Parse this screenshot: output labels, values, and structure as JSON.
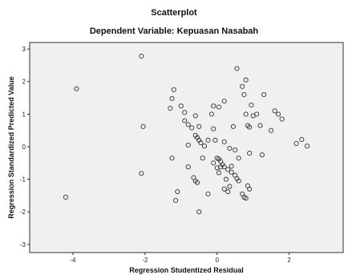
{
  "chart_data": {
    "type": "scatter",
    "title": "Scatterplot",
    "subtitle": "Dependent Variable: Kepuasan Nasabah",
    "xlabel": "Regression Studentized Residual",
    "ylabel": "Regression Standardized Predicted Value",
    "xlim": [
      -5.2,
      3.5
    ],
    "ylim": [
      -3.25,
      3.2
    ],
    "xticks": [
      -4,
      -2,
      0,
      2
    ],
    "xtick_labels": [
      "-4",
      "-2",
      "0",
      "2"
    ],
    "yticks": [
      -3,
      -2,
      -1,
      0,
      1,
      2,
      3
    ],
    "ytick_labels": [
      "-3",
      "-2",
      "-1",
      "0",
      "1",
      "2",
      "3"
    ],
    "grid": false,
    "legend": "none",
    "colors": {
      "plot_background": "#f0f0f0",
      "marker_edge": "#333333",
      "frame": "#000000"
    },
    "points": [
      {
        "x": -4.2,
        "y": -1.55
      },
      {
        "x": -3.9,
        "y": 1.78
      },
      {
        "x": -2.1,
        "y": 2.78
      },
      {
        "x": -2.05,
        "y": 0.62
      },
      {
        "x": -2.1,
        "y": -0.82
      },
      {
        "x": -1.2,
        "y": 1.75
      },
      {
        "x": -1.25,
        "y": 1.48
      },
      {
        "x": -1.3,
        "y": 1.18
      },
      {
        "x": -0.9,
        "y": 1.05
      },
      {
        "x": -0.9,
        "y": 0.8
      },
      {
        "x": -0.8,
        "y": 0.68
      },
      {
        "x": -0.7,
        "y": 0.58
      },
      {
        "x": -1.0,
        "y": 1.25
      },
      {
        "x": -0.6,
        "y": 0.95
      },
      {
        "x": -0.6,
        "y": 0.35
      },
      {
        "x": -0.55,
        "y": 0.28
      },
      {
        "x": -0.5,
        "y": 0.2
      },
      {
        "x": -0.45,
        "y": 0.12
      },
      {
        "x": -0.35,
        "y": 0.02
      },
      {
        "x": -0.8,
        "y": 0.05
      },
      {
        "x": -0.5,
        "y": 0.62
      },
      {
        "x": -0.25,
        "y": 0.2
      },
      {
        "x": -1.25,
        "y": -0.35
      },
      {
        "x": -0.8,
        "y": -0.62
      },
      {
        "x": -0.65,
        "y": -0.95
      },
      {
        "x": -0.55,
        "y": -1.1
      },
      {
        "x": -0.6,
        "y": -1.05
      },
      {
        "x": -1.1,
        "y": -1.38
      },
      {
        "x": -1.15,
        "y": -1.65
      },
      {
        "x": -0.5,
        "y": -2.0
      },
      {
        "x": -0.25,
        "y": -1.45
      },
      {
        "x": -0.4,
        "y": -0.35
      },
      {
        "x": -0.15,
        "y": 1.0
      },
      {
        "x": -0.1,
        "y": 0.55
      },
      {
        "x": -0.05,
        "y": 0.2
      },
      {
        "x": -0.1,
        "y": -0.5
      },
      {
        "x": -0.1,
        "y": 1.25
      },
      {
        "x": 0.05,
        "y": 1.22
      },
      {
        "x": 0.0,
        "y": -0.35
      },
      {
        "x": 0.05,
        "y": -0.38
      },
      {
        "x": 0.1,
        "y": -0.45
      },
      {
        "x": 0.15,
        "y": -0.55
      },
      {
        "x": 0.2,
        "y": -0.62
      },
      {
        "x": 0.3,
        "y": -0.7
      },
      {
        "x": 0.4,
        "y": -0.78
      },
      {
        "x": 0.5,
        "y": -0.88
      },
      {
        "x": 0.55,
        "y": -0.98
      },
      {
        "x": 0.6,
        "y": -1.05
      },
      {
        "x": 0.1,
        "y": -0.62
      },
      {
        "x": 0.05,
        "y": -0.8
      },
      {
        "x": 0.0,
        "y": -0.65
      },
      {
        "x": 0.25,
        "y": -1.0
      },
      {
        "x": 0.35,
        "y": -1.22
      },
      {
        "x": 0.2,
        "y": -1.3
      },
      {
        "x": 0.3,
        "y": -1.38
      },
      {
        "x": 0.7,
        "y": -1.45
      },
      {
        "x": 0.75,
        "y": -1.55
      },
      {
        "x": 0.8,
        "y": -1.58
      },
      {
        "x": 0.9,
        "y": -1.3
      },
      {
        "x": 0.85,
        "y": -1.2
      },
      {
        "x": 0.5,
        "y": -0.1
      },
      {
        "x": 0.4,
        "y": -0.6
      },
      {
        "x": 0.6,
        "y": -0.35
      },
      {
        "x": 0.35,
        "y": -0.05
      },
      {
        "x": 0.2,
        "y": 0.15
      },
      {
        "x": 0.2,
        "y": 1.4
      },
      {
        "x": 0.45,
        "y": 0.62
      },
      {
        "x": 0.55,
        "y": 2.4
      },
      {
        "x": 0.7,
        "y": 1.85
      },
      {
        "x": 0.8,
        "y": 2.05
      },
      {
        "x": 0.75,
        "y": 1.6
      },
      {
        "x": 0.8,
        "y": 1.0
      },
      {
        "x": 0.85,
        "y": 0.65
      },
      {
        "x": 0.9,
        "y": 0.6
      },
      {
        "x": 0.95,
        "y": 1.28
      },
      {
        "x": 1.0,
        "y": 0.95
      },
      {
        "x": 1.1,
        "y": 1.0
      },
      {
        "x": 1.3,
        "y": 1.6
      },
      {
        "x": 1.2,
        "y": 0.65
      },
      {
        "x": 0.9,
        "y": -0.2
      },
      {
        "x": 1.25,
        "y": -0.25
      },
      {
        "x": 1.5,
        "y": 0.5
      },
      {
        "x": 1.6,
        "y": 1.1
      },
      {
        "x": 1.7,
        "y": 1.0
      },
      {
        "x": 1.8,
        "y": 0.85
      },
      {
        "x": 2.2,
        "y": 0.1
      },
      {
        "x": 2.35,
        "y": 0.22
      },
      {
        "x": 2.5,
        "y": 0.02
      }
    ]
  }
}
